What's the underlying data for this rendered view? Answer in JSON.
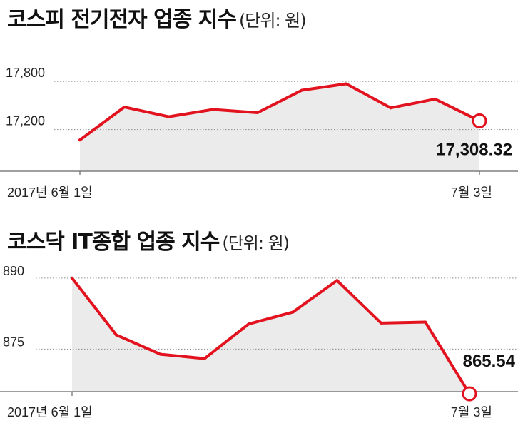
{
  "charts": [
    {
      "title": "코스피 전기전자 업종 지수",
      "unit": "(단위: 원)"
    },
    {
      "title": "코스닥 IT종합 업종 지수",
      "unit": "(단위: 원)"
    }
  ],
  "colors": {
    "line": "#e2131f",
    "area": "#ebebeb",
    "grid": "#8a8a8a",
    "text": "#111111"
  },
  "chart_data": [
    {
      "type": "area",
      "title": "코스피 전기전자 업종 지수",
      "ylabel": "(단위: 원)",
      "xlabel": "",
      "y_ticks": [
        17200,
        17800
      ],
      "y_tick_labels": [
        "17,200",
        "17,800"
      ],
      "x_tick_labels": [
        "2017년 6월 1일",
        "7월 3일"
      ],
      "ylim": [
        16680,
        18300
      ],
      "grid": true,
      "series": [
        {
          "values": [
            17070,
            17480,
            17360,
            17450,
            17410,
            17690,
            17770,
            17470,
            17580,
            17308.32
          ]
        }
      ],
      "last_value_label": "17,308.32"
    },
    {
      "type": "area",
      "title": "코스닥 IT종합 업종 지수",
      "ylabel": "(단위: 원)",
      "xlabel": "",
      "y_ticks": [
        875,
        890
      ],
      "y_tick_labels": [
        "875",
        "890"
      ],
      "x_tick_labels": [
        "2017년 6월 1일",
        "7월 3일"
      ],
      "ylim": [
        866,
        893
      ],
      "grid": true,
      "series": [
        {
          "values": [
            890,
            878,
            873.9,
            873,
            880.3,
            882.8,
            889.5,
            880.5,
            880.7,
            865.54
          ]
        }
      ],
      "last_value_label": "865.54"
    }
  ]
}
